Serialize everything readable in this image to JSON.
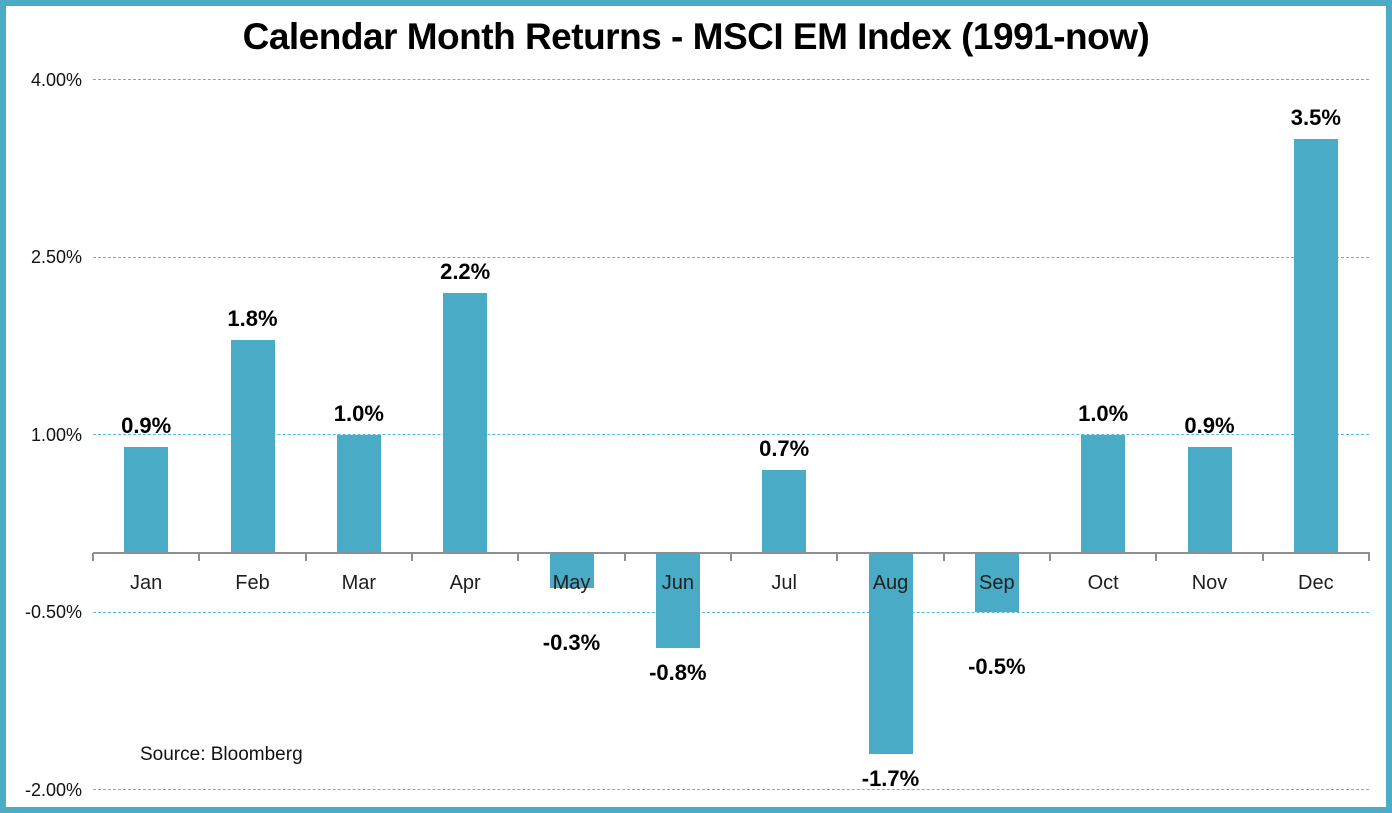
{
  "title": "Calendar Month Returns - MSCI EM Index (1991-now)",
  "source": "Source: Bloomberg",
  "colors": {
    "bar": "#4aabc7",
    "frame_border": "#4bacc6",
    "gridline": "#56b8dc",
    "axis": "#8f8f8f",
    "text": "#000000"
  },
  "chart_data": {
    "type": "bar",
    "title": "Calendar Month Returns - MSCI EM Index (1991-now)",
    "xlabel": "",
    "ylabel": "",
    "categories": [
      "Jan",
      "Feb",
      "Mar",
      "Apr",
      "May",
      "Jun",
      "Jul",
      "Aug",
      "Sep",
      "Oct",
      "Nov",
      "Dec"
    ],
    "values": [
      0.9,
      1.8,
      1.0,
      2.2,
      -0.3,
      -0.8,
      0.7,
      -1.7,
      -0.5,
      1.0,
      0.9,
      3.5
    ],
    "data_labels": [
      "0.9%",
      "1.8%",
      "1.0%",
      "2.2%",
      "-0.3%",
      "-0.8%",
      "0.7%",
      "-1.7%",
      "-0.5%",
      "1.0%",
      "0.9%",
      "3.5%"
    ],
    "y_ticks": [
      {
        "label": "4.00%",
        "value": 4.0
      },
      {
        "label": "2.50%",
        "value": 2.5
      },
      {
        "label": "1.00%",
        "value": 1.0
      },
      {
        "label": "-0.50%",
        "value": -0.5
      },
      {
        "label": "-2.00%",
        "value": -2.0
      }
    ],
    "ylim": [
      -2.0,
      4.0
    ],
    "grid": "horizontal-dashed",
    "legend_position": "none",
    "annotation": "Source: Bloomberg"
  }
}
